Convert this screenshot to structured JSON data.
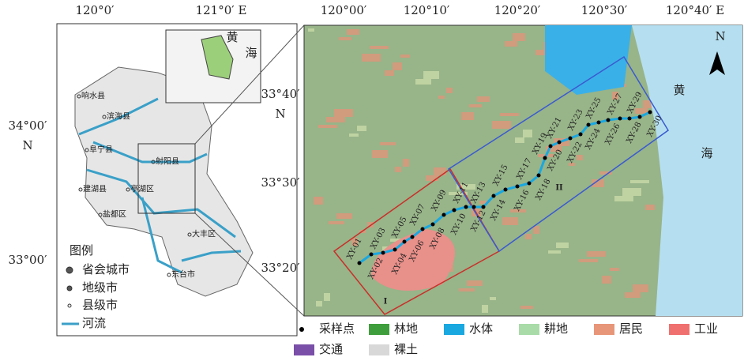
{
  "left_map": {
    "lon_labels": [
      "120°0′",
      "121°0′ E"
    ],
    "lat_labels": [
      "34°00′",
      "N",
      "33°00′"
    ],
    "places": [
      "响水县",
      "滨海县",
      "阜宁县",
      "射阳县",
      "建湖县",
      "亭湖区",
      "盐都区",
      "大丰区",
      "东台市"
    ],
    "inset_sea": [
      "黄",
      "海"
    ],
    "legend": {
      "title": "图例",
      "items": [
        "省会城市",
        "地级市",
        "县级市",
        "河流"
      ]
    }
  },
  "right_map": {
    "lon_labels": [
      "120°00′",
      "120°10′",
      "120°20′",
      "120°30′",
      "120°40′ E"
    ],
    "lat_labels": [
      "33°40′",
      "N",
      "33°30′",
      "33°20′"
    ],
    "samples": [
      "XY-01",
      "XY-02",
      "XY-03",
      "XY-04",
      "XY-05",
      "XY-06",
      "XY-07",
      "XY-08",
      "XY-09",
      "XY-10",
      "XY-11",
      "XY-12",
      "XY-13",
      "XY-14",
      "XY-15",
      "XY-16",
      "XY-17",
      "XY-18",
      "XY-19",
      "XY-20",
      "XY-21",
      "XY-22",
      "XY-23",
      "XY-24",
      "XY-25",
      "XY-26",
      "XY-27",
      "XY-28",
      "XY-29",
      "XY-30"
    ],
    "regions": [
      "I",
      "II"
    ],
    "sea": [
      "黄",
      "海"
    ],
    "north": "N"
  },
  "legend": {
    "items": [
      {
        "label": "采样点",
        "color": "#000000"
      },
      {
        "label": "林地",
        "color": "#3f9e3c"
      },
      {
        "label": "水体",
        "color": "#1aa8e0"
      },
      {
        "label": "耕地",
        "color": "#a8dba8"
      },
      {
        "label": "居民",
        "color": "#e8967a"
      },
      {
        "label": "工业",
        "color": "#f07070"
      },
      {
        "label": "交通",
        "color": "#7a4fa8"
      },
      {
        "label": "裸土",
        "color": "#d8d8d8"
      }
    ]
  }
}
